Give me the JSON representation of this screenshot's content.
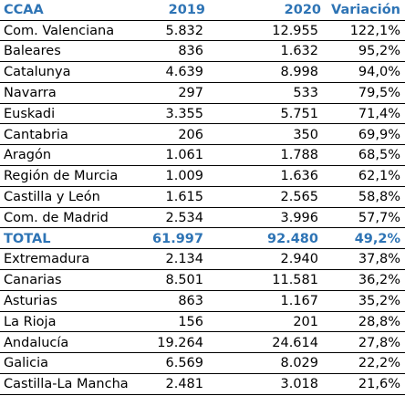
{
  "columns": [
    "CCAA",
    "2019",
    "2020",
    "Variación"
  ],
  "colors": {
    "header_text": "#2e74b5",
    "total_text": "#2e74b5",
    "body_text": "#000000",
    "rule": "#000000"
  },
  "rows": [
    {
      "ccaa": "Com. Valenciana",
      "y2019": "5.832",
      "y2020": "12.955",
      "var": "122,1%"
    },
    {
      "ccaa": "Baleares",
      "y2019": "836",
      "y2020": "1.632",
      "var": "95,2%"
    },
    {
      "ccaa": "Catalunya",
      "y2019": "4.639",
      "y2020": "8.998",
      "var": "94,0%"
    },
    {
      "ccaa": "Navarra",
      "y2019": "297",
      "y2020": "533",
      "var": "79,5%"
    },
    {
      "ccaa": "Euskadi",
      "y2019": "3.355",
      "y2020": "5.751",
      "var": "71,4%"
    },
    {
      "ccaa": "Cantabria",
      "y2019": "206",
      "y2020": "350",
      "var": "69,9%"
    },
    {
      "ccaa": "Aragón",
      "y2019": "1.061",
      "y2020": "1.788",
      "var": "68,5%"
    },
    {
      "ccaa": "Región de Murcia",
      "y2019": "1.009",
      "y2020": "1.636",
      "var": "62,1%"
    },
    {
      "ccaa": "Castilla y León",
      "y2019": "1.615",
      "y2020": "2.565",
      "var": "58,8%"
    },
    {
      "ccaa": "Com. de Madrid",
      "y2019": "2.534",
      "y2020": "3.996",
      "var": "57,7%"
    },
    {
      "ccaa": "TOTAL",
      "y2019": "61.997",
      "y2020": "92.480",
      "var": "49,2%",
      "total": true
    },
    {
      "ccaa": "Extremadura",
      "y2019": "2.134",
      "y2020": "2.940",
      "var": "37,8%"
    },
    {
      "ccaa": "Canarias",
      "y2019": "8.501",
      "y2020": "11.581",
      "var": "36,2%"
    },
    {
      "ccaa": "Asturias",
      "y2019": "863",
      "y2020": "1.167",
      "var": "35,2%"
    },
    {
      "ccaa": "La Rioja",
      "y2019": "156",
      "y2020": "201",
      "var": "28,8%"
    },
    {
      "ccaa": "Andalucía",
      "y2019": "19.264",
      "y2020": "24.614",
      "var": "27,8%"
    },
    {
      "ccaa": "Galicia",
      "y2019": "6.569",
      "y2020": "8.029",
      "var": "22,2%"
    },
    {
      "ccaa": "Castilla-La Mancha",
      "y2019": "2.481",
      "y2020": "3.018",
      "var": "21,6%"
    }
  ]
}
